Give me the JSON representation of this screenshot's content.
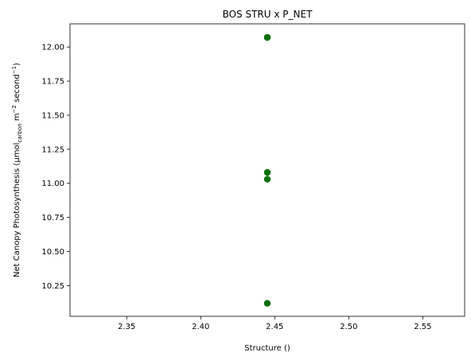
{
  "chart_data": {
    "type": "scatter",
    "title": "BOS STRU x P_NET",
    "xlabel": "Structure ()",
    "ylabel_main": "Net Canopy Photosynthesis (µmol",
    "ylabel_sub": "carbon",
    "ylabel_mid": " m",
    "ylabel_sup1": "−2",
    "ylabel_mid2": " second",
    "ylabel_sup2": "−1",
    "ylabel_end": ")",
    "xlim": [
      2.3117,
      2.5783
    ],
    "ylim": [
      10.025,
      12.17
    ],
    "x_ticks": [
      2.35,
      2.4,
      2.45,
      2.5,
      2.55
    ],
    "x_tick_labels": [
      "2.35",
      "2.40",
      "2.45",
      "2.50",
      "2.55"
    ],
    "y_ticks": [
      10.25,
      10.5,
      10.75,
      11.0,
      11.25,
      11.5,
      11.75,
      12.0
    ],
    "y_tick_labels": [
      "10.25",
      "10.50",
      "10.75",
      "11.00",
      "11.25",
      "11.50",
      "11.75",
      "12.00"
    ],
    "points": [
      {
        "x": 2.445,
        "y": 12.07
      },
      {
        "x": 2.445,
        "y": 12.07
      },
      {
        "x": 2.445,
        "y": 11.08
      },
      {
        "x": 2.445,
        "y": 11.03
      },
      {
        "x": 2.445,
        "y": 10.12
      }
    ],
    "marker_color": "#007000",
    "grid": false,
    "legend": "none"
  }
}
